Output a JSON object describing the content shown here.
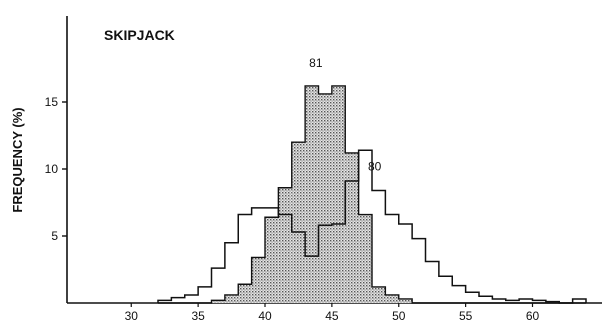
{
  "chart_data": {
    "type": "step",
    "title": "SKIPJACK",
    "ylabel": "FREQUENCY (%)",
    "xlabel": "",
    "xlim": [
      24,
      65
    ],
    "ylim": [
      0,
      19.3
    ],
    "x_ticks": [
      30,
      35,
      40,
      45,
      50,
      55,
      60
    ],
    "y_ticks": [
      5,
      10,
      15
    ],
    "bin_edges": [
      32,
      33,
      34,
      35,
      36,
      37,
      38,
      39,
      40,
      41,
      42,
      43,
      44,
      45,
      46,
      47,
      48,
      49,
      50,
      51,
      52,
      53,
      54,
      55,
      56,
      57,
      58,
      59,
      60,
      61,
      62,
      63,
      64
    ],
    "series": [
      {
        "name": "80",
        "style": "outline",
        "values": [
          0.2,
          0.4,
          0.6,
          1.2,
          2.6,
          4.5,
          6.6,
          7.1,
          7.1,
          6.6,
          5.3,
          3.5,
          5.8,
          5.9,
          9.1,
          11.4,
          8.4,
          6.6,
          5.9,
          4.8,
          3.1,
          2.0,
          1.3,
          0.8,
          0.5,
          0.3,
          0.2,
          0.3,
          0.2,
          0.1,
          0,
          0.3
        ]
      },
      {
        "name": "81",
        "style": "filled",
        "values": [
          0,
          0,
          0,
          0,
          0.2,
          0.6,
          1.4,
          3.4,
          6.4,
          8.6,
          12.0,
          16.2,
          15.6,
          16.2,
          11.2,
          6.6,
          1.2,
          0.6,
          0.3,
          0,
          0,
          0,
          0,
          0,
          0,
          0,
          0,
          0,
          0,
          0,
          0,
          0
        ]
      }
    ],
    "series_label_anchors": [
      {
        "name": "80",
        "x": 48.2,
        "y": 9.9
      },
      {
        "name": "81",
        "x": 43.8,
        "y": 17.6
      }
    ],
    "colors": {
      "fill": "#9a9a9a",
      "line": "#111111"
    }
  }
}
